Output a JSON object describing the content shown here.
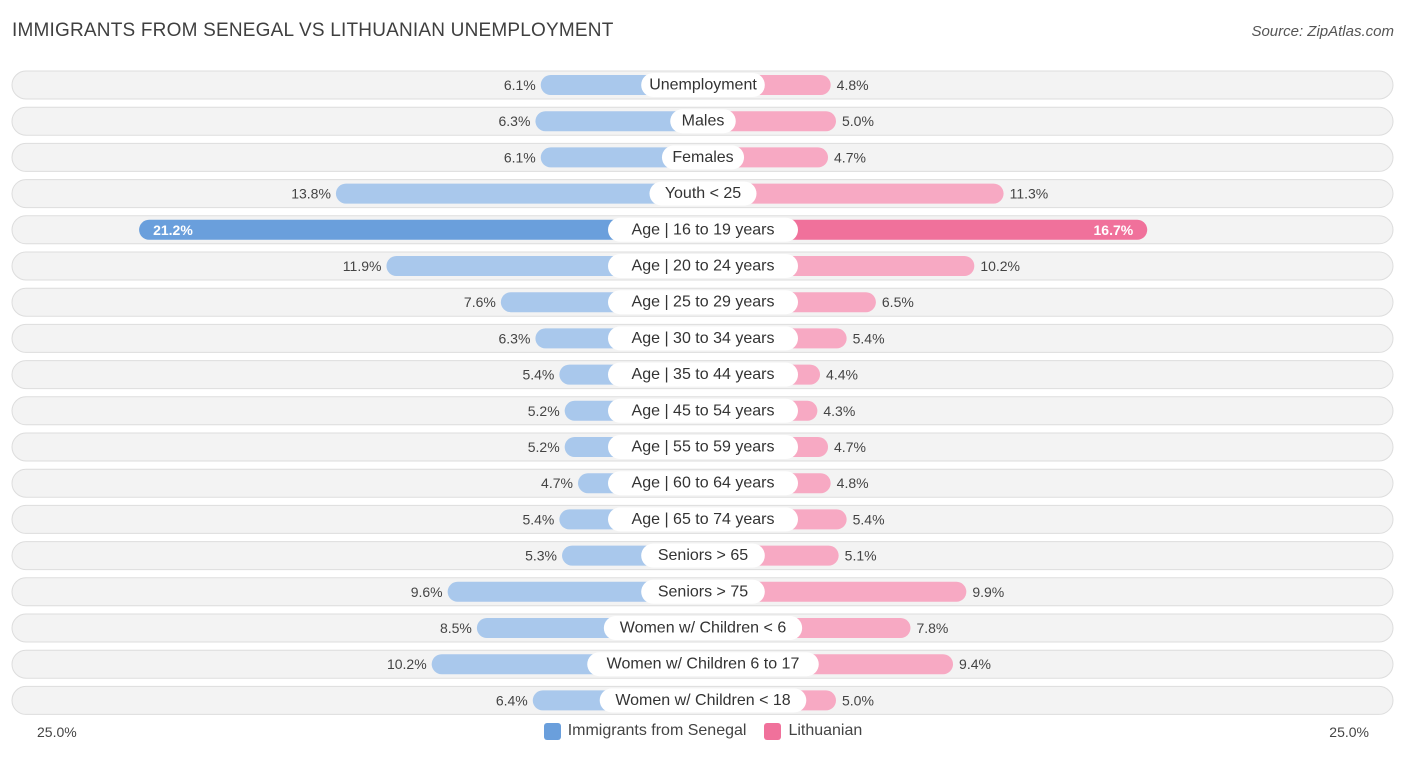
{
  "title": "IMMIGRANTS FROM SENEGAL VS LITHUANIAN UNEMPLOYMENT",
  "source": "Source: ZipAtlas.com",
  "axis": {
    "left_label": "25.0%",
    "right_label": "25.0%"
  },
  "legend": {
    "series_a": "Immigrants from Senegal",
    "series_b": "Lithuanian"
  },
  "colors": {
    "series_a": "#6a9fdc",
    "series_a_light": "#a9c8ec",
    "series_b": "#f0719b",
    "series_b_light": "#f7a9c3",
    "row_bg": "#f3f3f3",
    "row_border": "#dddddd"
  },
  "chart_data": {
    "type": "bar",
    "orientation": "horizontal-diverging",
    "xlim": [
      -25,
      25
    ],
    "categories": [
      "Unemployment",
      "Males",
      "Females",
      "Youth < 25",
      "Age | 16 to 19 years",
      "Age | 20 to 24 years",
      "Age | 25 to 29 years",
      "Age | 30 to 34 years",
      "Age | 35 to 44 years",
      "Age | 45 to 54 years",
      "Age | 55 to 59 years",
      "Age | 60 to 64 years",
      "Age | 65 to 74 years",
      "Seniors > 65",
      "Seniors > 75",
      "Women w/ Children < 6",
      "Women w/ Children 6 to 17",
      "Women w/ Children < 18"
    ],
    "series": [
      {
        "name": "Immigrants from Senegal",
        "values": [
          6.1,
          6.3,
          6.1,
          13.8,
          21.2,
          11.9,
          7.6,
          6.3,
          5.4,
          5.2,
          5.2,
          4.7,
          5.4,
          5.3,
          9.6,
          8.5,
          10.2,
          6.4
        ],
        "labels": [
          "6.1%",
          "6.3%",
          "6.1%",
          "13.8%",
          "21.2%",
          "11.9%",
          "7.6%",
          "6.3%",
          "5.4%",
          "5.2%",
          "5.2%",
          "4.7%",
          "5.4%",
          "5.3%",
          "9.6%",
          "8.5%",
          "10.2%",
          "6.4%"
        ]
      },
      {
        "name": "Lithuanian",
        "values": [
          4.8,
          5.0,
          4.7,
          11.3,
          16.7,
          10.2,
          6.5,
          5.4,
          4.4,
          4.3,
          4.7,
          4.8,
          5.4,
          5.1,
          9.9,
          7.8,
          9.4,
          5.0
        ],
        "labels": [
          "4.8%",
          "5.0%",
          "4.7%",
          "11.3%",
          "16.7%",
          "10.2%",
          "6.5%",
          "5.4%",
          "4.4%",
          "4.3%",
          "4.7%",
          "4.8%",
          "5.4%",
          "5.1%",
          "9.9%",
          "7.8%",
          "9.4%",
          "5.0%"
        ]
      }
    ],
    "legend_position": "bottom-center"
  }
}
